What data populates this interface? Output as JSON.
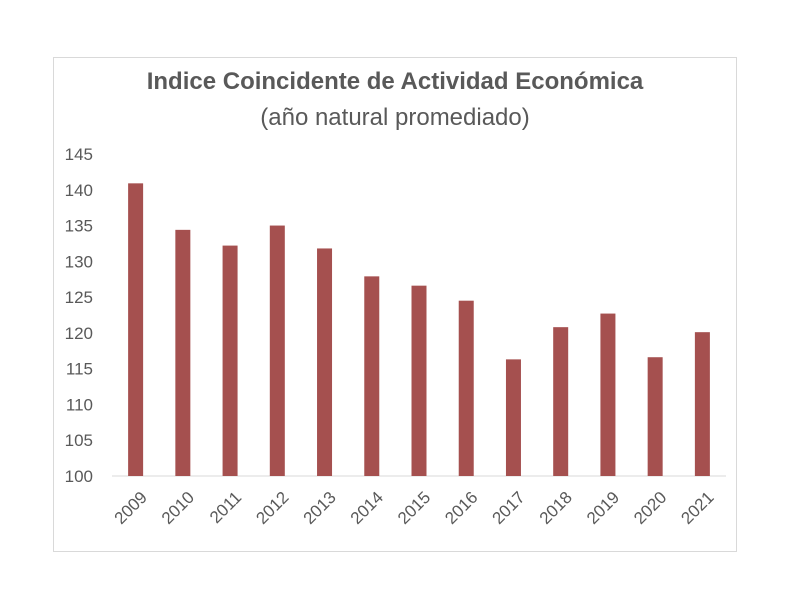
{
  "chart_data": {
    "type": "bar",
    "title": "Indice Coincidente de Actividad Económica",
    "subtitle": "(año natural promediado)",
    "xlabel": "",
    "ylabel": "",
    "categories": [
      "2009",
      "2010",
      "2011",
      "2012",
      "2013",
      "2014",
      "2015",
      "2016",
      "2017",
      "2018",
      "2019",
      "2020",
      "2021"
    ],
    "values": [
      140.9,
      134.4,
      132.2,
      135.0,
      131.8,
      127.9,
      126.6,
      124.5,
      116.3,
      120.8,
      122.7,
      116.6,
      120.1
    ],
    "ylim": [
      100,
      145
    ],
    "yticks": [
      100,
      105,
      110,
      115,
      120,
      125,
      130,
      135,
      140,
      145
    ],
    "grid": false,
    "legend": "none",
    "bar_color": "#a5504f",
    "axis_color": "#d9d9d9",
    "text_color": "#595959"
  }
}
